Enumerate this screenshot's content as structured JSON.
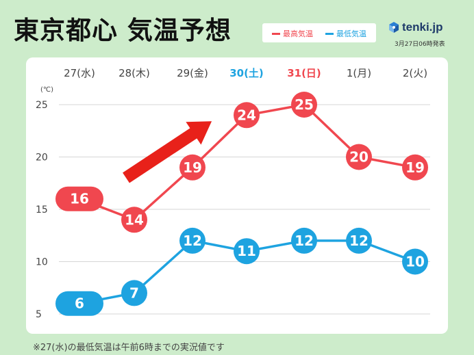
{
  "header": {
    "title": "東京都心 気温予想",
    "brand": "tenki.jp",
    "issued": "3月27日06時発表"
  },
  "legend": {
    "high_label": "最高気温",
    "low_label": "最低気温"
  },
  "footnote": "※27(水)の最低気温は午前6時までの実況値です",
  "colors": {
    "high": "#f0474f",
    "low": "#1ea3e0",
    "weekday": "#444444",
    "saturday": "#1ea3e0",
    "sunday": "#f0474f",
    "background": "#cdeccb",
    "trend_arrow": "#e8211a"
  },
  "chart_data": {
    "type": "line",
    "categories": [
      "27(水)",
      "28(木)",
      "29(金)",
      "30(土)",
      "31(日)",
      "1(月)",
      "2(火)"
    ],
    "category_colors": [
      "weekday",
      "weekday",
      "weekday",
      "saturday",
      "sunday",
      "weekday",
      "weekday"
    ],
    "series": [
      {
        "name": "最高気温",
        "color_key": "high",
        "values": [
          16,
          14,
          19,
          24,
          25,
          20,
          19
        ]
      },
      {
        "name": "最低気温",
        "color_key": "low",
        "values": [
          6,
          7,
          12,
          11,
          12,
          12,
          10
        ]
      }
    ],
    "unit": "(℃)",
    "yticks": [
      5,
      10,
      15,
      20,
      25
    ],
    "ylim": [
      5,
      25
    ],
    "grid": true,
    "annotation": "rising-trend-arrow"
  }
}
